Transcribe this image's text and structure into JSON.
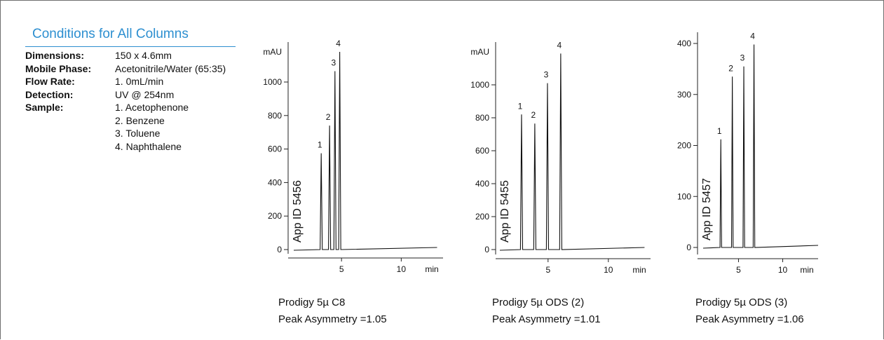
{
  "conditions": {
    "title": "Conditions for All Columns",
    "dimensions_label": "Dimensions:",
    "dimensions_value": "150  x  4.6mm",
    "mobile_phase_label": "Mobile Phase:",
    "mobile_phase_value": "Acetonitrile/Water (65:35)",
    "flow_rate_label": "Flow Rate:",
    "flow_rate_value": "1. 0mL/min",
    "detection_label": "Detection:",
    "detection_value": "UV @ 254nm",
    "sample_label": "Sample:",
    "samples": [
      "1.  Acetophenone",
      "2.  Benzene",
      "3.  Toluene",
      "4.  Naphthalene"
    ]
  },
  "captions": [
    {
      "name": "Prodigy 5µ C8",
      "asymmetry": "Peak Asymmetry =1.05"
    },
    {
      "name": "Prodigy 5µ ODS (2)",
      "asymmetry": "Peak Asymmetry =1.01"
    },
    {
      "name": "Prodigy 5µ ODS (3)",
      "asymmetry": "Peak Asymmetry =1.06"
    }
  ],
  "chart_data": [
    {
      "type": "line",
      "app_id": "App ID 5456",
      "y_unit": "mAU",
      "x_unit": "min",
      "xlim": [
        0,
        14
      ],
      "ylim": [
        0,
        1000
      ],
      "yticks": [
        0,
        200,
        400,
        600,
        800,
        1000
      ],
      "xticks": [
        5,
        10
      ],
      "baseline_end": 13,
      "peaks": [
        {
          "label": "1",
          "rt": 3.3,
          "height": 575
        },
        {
          "label": "2",
          "rt": 4.0,
          "height": 740
        },
        {
          "label": "3",
          "rt": 4.45,
          "height": 1065
        },
        {
          "label": "4",
          "rt": 4.85,
          "height": 1180
        }
      ]
    },
    {
      "type": "line",
      "app_id": "App ID 5455",
      "y_unit": "mAU",
      "x_unit": "min",
      "xlim": [
        0,
        14
      ],
      "ylim": [
        0,
        1000
      ],
      "yticks": [
        0,
        200,
        400,
        600,
        800,
        1000
      ],
      "xticks": [
        5,
        10
      ],
      "baseline_end": 13,
      "peaks": [
        {
          "label": "1",
          "rt": 2.8,
          "height": 820
        },
        {
          "label": "2",
          "rt": 3.9,
          "height": 765
        },
        {
          "label": "3",
          "rt": 4.95,
          "height": 1010
        },
        {
          "label": "4",
          "rt": 6.05,
          "height": 1190
        }
      ]
    },
    {
      "type": "line",
      "app_id": "App ID 5457",
      "y_unit": "",
      "x_unit": "min",
      "xlim": [
        0,
        14
      ],
      "ylim": [
        0,
        400
      ],
      "yticks": [
        0,
        100,
        200,
        300,
        400
      ],
      "xticks": [
        5,
        10
      ],
      "baseline_end": 14,
      "peaks": [
        {
          "label": "1",
          "rt": 3.0,
          "height": 212
        },
        {
          "label": "2",
          "rt": 4.3,
          "height": 335
        },
        {
          "label": "3",
          "rt": 5.6,
          "height": 355
        },
        {
          "label": "4",
          "rt": 6.75,
          "height": 398
        }
      ]
    }
  ]
}
